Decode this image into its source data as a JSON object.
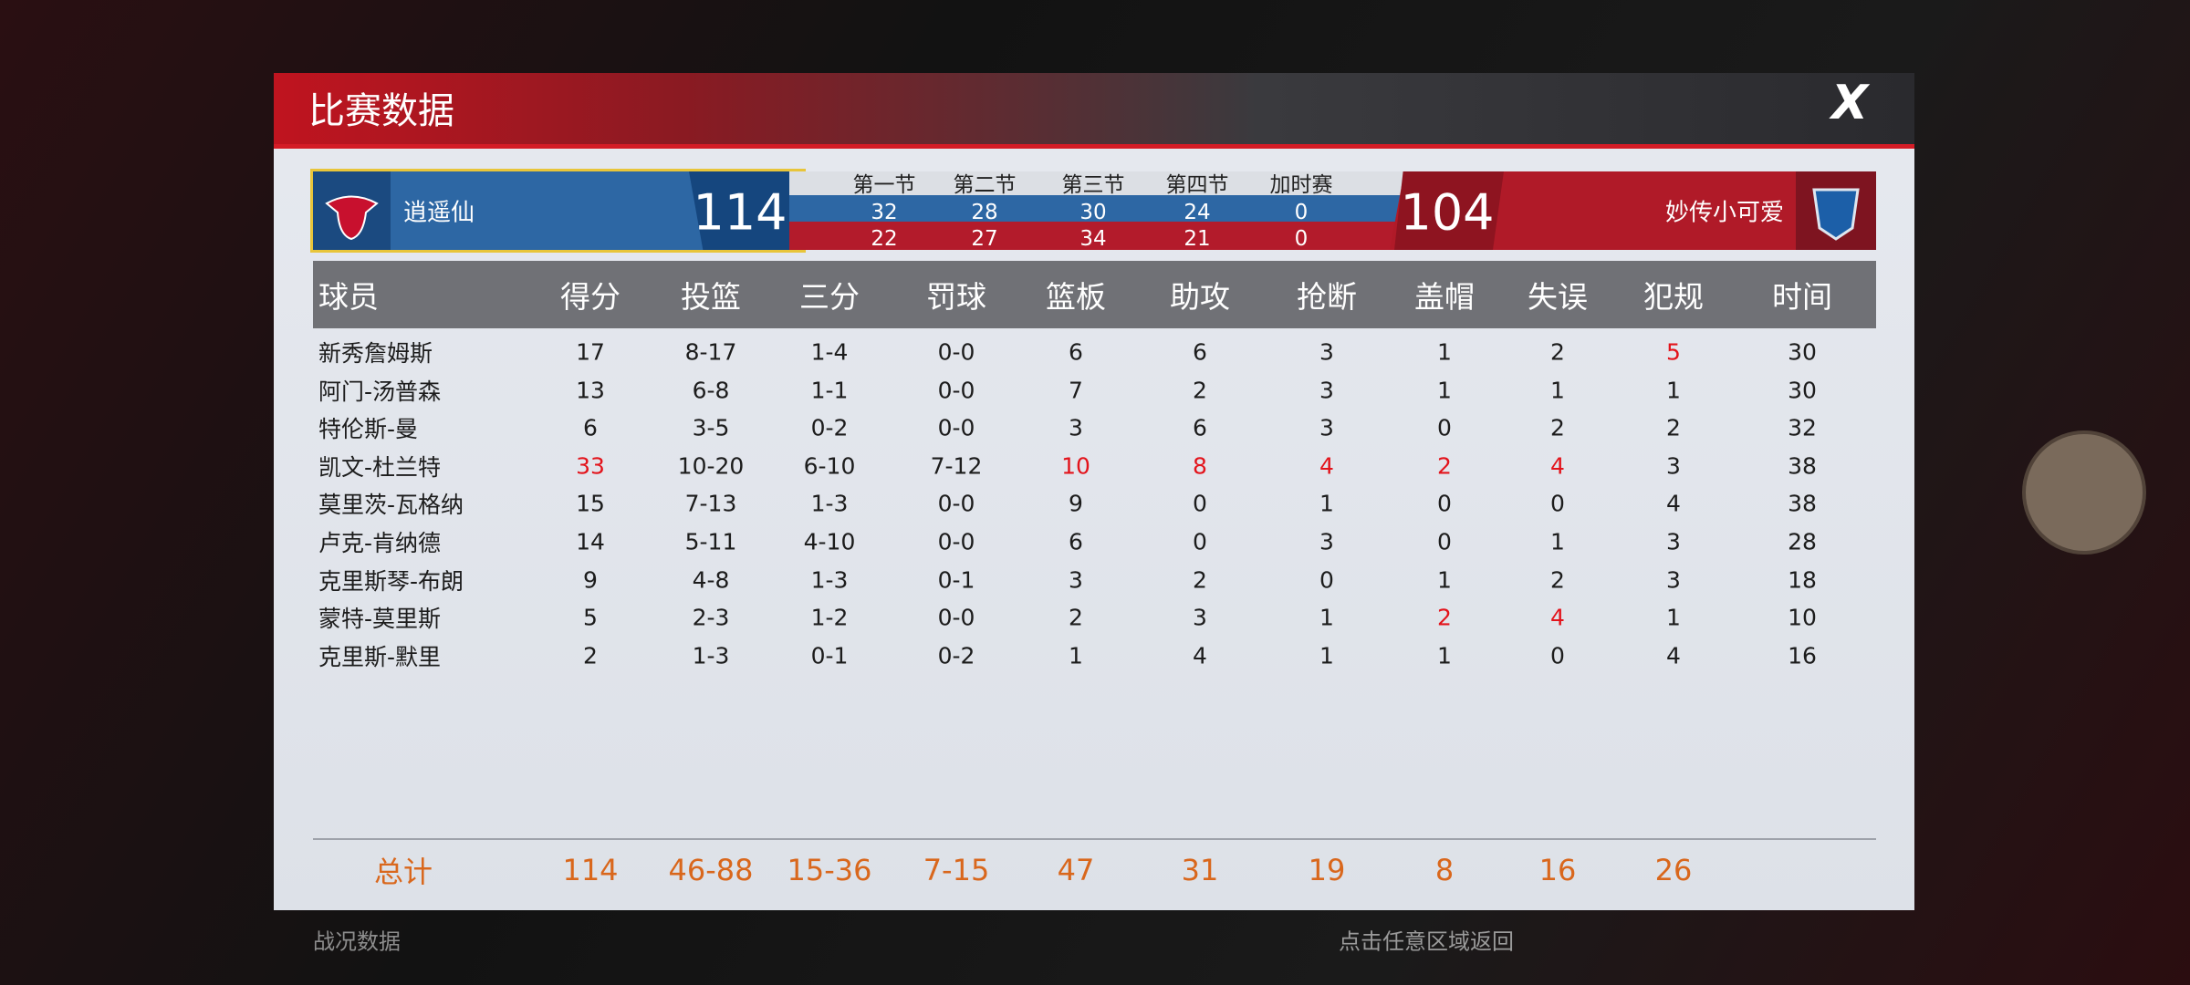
{
  "header": {
    "title": "比赛数据"
  },
  "scoreboard": {
    "home": {
      "name": "逍遥仙",
      "score": 114,
      "quarters": [
        32,
        28,
        30,
        24,
        0
      ]
    },
    "away": {
      "name": "妙传小可爱",
      "score": 104,
      "quarters": [
        22,
        27,
        34,
        21,
        0
      ]
    },
    "periods": [
      "第一节",
      "第二节",
      "第三节",
      "第四节",
      "加时赛"
    ]
  },
  "table": {
    "headers": [
      "球员",
      "得分",
      "投篮",
      "三分",
      "罚球",
      "篮板",
      "助攻",
      "抢断",
      "盖帽",
      "失误",
      "犯规",
      "时间"
    ],
    "highlight_color": "#e3131b",
    "rows": [
      {
        "cells": [
          "新秀詹姆斯",
          "17",
          "8-17",
          "1-4",
          "0-0",
          "6",
          "6",
          "3",
          "1",
          "2",
          "5",
          "30"
        ],
        "highlight": [
          10
        ]
      },
      {
        "cells": [
          "阿门-汤普森",
          "13",
          "6-8",
          "1-1",
          "0-0",
          "7",
          "2",
          "3",
          "1",
          "1",
          "1",
          "30"
        ],
        "highlight": []
      },
      {
        "cells": [
          "特伦斯-曼",
          "6",
          "3-5",
          "0-2",
          "0-0",
          "3",
          "6",
          "3",
          "0",
          "2",
          "2",
          "32"
        ],
        "highlight": []
      },
      {
        "cells": [
          "凯文-杜兰特",
          "33",
          "10-20",
          "6-10",
          "7-12",
          "10",
          "8",
          "4",
          "2",
          "4",
          "3",
          "38"
        ],
        "highlight": [
          1,
          5,
          6,
          7,
          8,
          9
        ]
      },
      {
        "cells": [
          "莫里茨-瓦格纳",
          "15",
          "7-13",
          "1-3",
          "0-0",
          "9",
          "0",
          "1",
          "0",
          "0",
          "4",
          "38"
        ],
        "highlight": []
      },
      {
        "cells": [
          "卢克-肯纳德",
          "14",
          "5-11",
          "4-10",
          "0-0",
          "6",
          "0",
          "3",
          "0",
          "1",
          "3",
          "28"
        ],
        "highlight": []
      },
      {
        "cells": [
          "克里斯琴-布朗",
          "9",
          "4-8",
          "1-3",
          "0-1",
          "3",
          "2",
          "0",
          "1",
          "2",
          "3",
          "18"
        ],
        "highlight": []
      },
      {
        "cells": [
          "蒙特-莫里斯",
          "5",
          "2-3",
          "1-2",
          "0-0",
          "2",
          "3",
          "1",
          "2",
          "4",
          "1",
          "10"
        ],
        "highlight": [
          8,
          9
        ]
      },
      {
        "cells": [
          "克里斯-默里",
          "2",
          "1-3",
          "0-1",
          "0-2",
          "1",
          "4",
          "1",
          "1",
          "0",
          "4",
          "16"
        ],
        "highlight": []
      }
    ],
    "totals": [
      "总计",
      "114",
      "46-88",
      "15-36",
      "7-15",
      "47",
      "31",
      "19",
      "8",
      "16",
      "26"
    ]
  },
  "footer": {
    "left": "战况数据",
    "hint": "点击任意区域返回"
  }
}
